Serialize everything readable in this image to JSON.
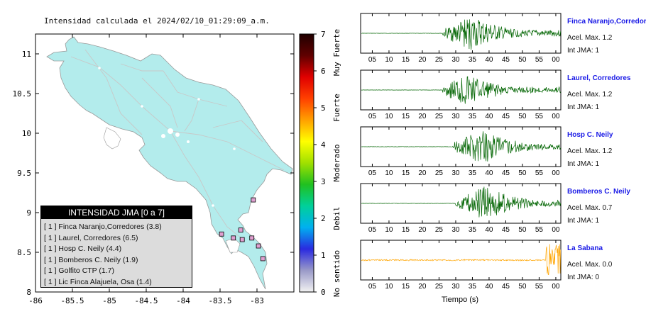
{
  "map": {
    "title": "Intensidad calculada el 2024/02/10_01:29:09_a.m.",
    "lon_ticks": [
      "-86",
      "-85.5",
      "-85",
      "-84.5",
      "-84",
      "-83.5",
      "-83"
    ],
    "lat_ticks": [
      "11",
      "10.5",
      "10",
      "9.5",
      "9",
      "8.5",
      "8"
    ],
    "land_color": "#b3ecec",
    "station_markers": [
      {
        "lon": -83.48,
        "lat": 8.73
      },
      {
        "lon": -83.32,
        "lat": 8.68
      },
      {
        "lon": -83.2,
        "lat": 8.66
      },
      {
        "lon": -82.98,
        "lat": 8.58
      },
      {
        "lon": -83.22,
        "lat": 8.78
      },
      {
        "lon": -83.07,
        "lat": 8.68
      },
      {
        "lon": -83.05,
        "lat": 9.16
      },
      {
        "lon": -82.92,
        "lat": 8.42
      }
    ]
  },
  "legend": {
    "title": "INTENSIDAD JMA [0 a 7]",
    "items": [
      "[ 1 ]  Finca Naranjo,Corredores (3.8)",
      "[ 1 ]  Laurel, Corredores (6.5)",
      "[ 1 ]  Hosp C. Neily (4.4)",
      "[ 1 ]  Bomberos C. Neily (1.9)",
      "[ 1 ]  Golfito CTP (1.7)",
      "[ 1 ]  Lic Finca Alajuela, Osa (1.4)"
    ]
  },
  "colorbar": {
    "ticks": [
      "0",
      "1",
      "2",
      "3",
      "4",
      "5",
      "6",
      "7"
    ],
    "labels": [
      "No sentido",
      "Debil",
      "Moderado",
      "Fuerte",
      "Muy Fuerte"
    ],
    "colors": [
      "#f2f2f2",
      "#9a9ac8",
      "#2a2ae0",
      "#00b0f0",
      "#00d09a",
      "#20c020",
      "#a0e000",
      "#ffff00",
      "#ffa000",
      "#ff4000",
      "#e00000",
      "#600000",
      "#200000"
    ]
  },
  "chart_data": {
    "type": "line",
    "xlabel": "Tiempo (s)",
    "x_tick_labels": [
      "05",
      "10",
      "15",
      "20",
      "25",
      "30",
      "35",
      "40",
      "45",
      "50",
      "55",
      "00"
    ],
    "traces": [
      {
        "name": "Finca Naranjo,Corredor",
        "accel_label": "Acel. Max. 1.2",
        "int_label": "Int JMA: 1",
        "color": "#006400",
        "onset_s": 26,
        "peak_s": 35,
        "max_amp": 1.0
      },
      {
        "name": "Laurel, Corredores",
        "accel_label": "Acel. Max. 1.2",
        "int_label": "Int JMA: 1",
        "color": "#006400",
        "onset_s": 26,
        "peak_s": 33,
        "max_amp": 1.0
      },
      {
        "name": "Hosp C. Neily",
        "accel_label": "Acel. Max. 1.2",
        "int_label": "Int JMA: 1",
        "color": "#006400",
        "onset_s": 29,
        "peak_s": 38,
        "max_amp": 1.0
      },
      {
        "name": "Bomberos C. Neily",
        "accel_label": "Acel. Max. 0.7",
        "int_label": "Int JMA: 1",
        "color": "#006400",
        "onset_s": 30,
        "peak_s": 39,
        "max_amp": 1.0
      },
      {
        "name": "La Sabana",
        "accel_label": "Acel. Max. 0.0",
        "int_label": "Int JMA: 0",
        "color": "#ffa500",
        "onset_s": 57,
        "peak_s": 58,
        "max_amp": 1.0
      }
    ]
  }
}
